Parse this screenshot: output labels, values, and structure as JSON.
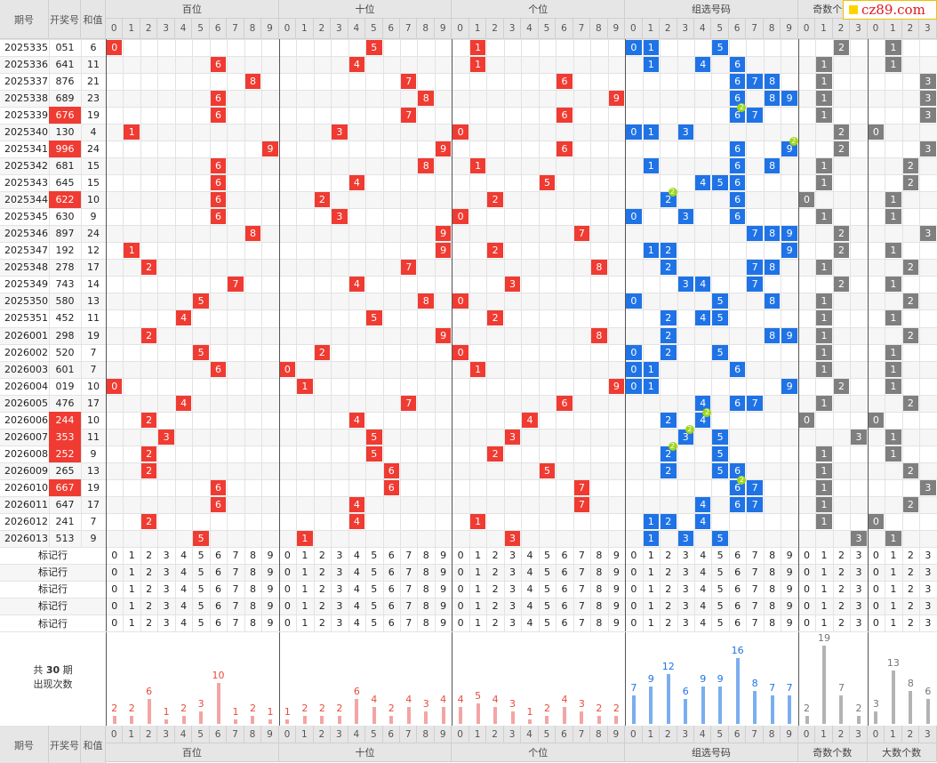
{
  "headers": {
    "period": "期号",
    "draw": "开奖号",
    "sum": "和值",
    "groups": [
      "百位",
      "十位",
      "个位",
      "组选号码",
      "奇数个数",
      "大数个数"
    ]
  },
  "digits": [
    "0",
    "1",
    "2",
    "3",
    "4",
    "5",
    "6",
    "7",
    "8",
    "9"
  ],
  "count_digits": [
    "0",
    "1",
    "2",
    "3"
  ],
  "rows": [
    {
      "period": "2025335",
      "draw": "051",
      "sum": "6"
    },
    {
      "period": "2025336",
      "draw": "641",
      "sum": "11"
    },
    {
      "period": "2025337",
      "draw": "876",
      "sum": "21"
    },
    {
      "period": "2025338",
      "draw": "689",
      "sum": "23"
    },
    {
      "period": "2025339",
      "draw": "676",
      "sum": "19"
    },
    {
      "period": "2025340",
      "draw": "130",
      "sum": "4"
    },
    {
      "period": "2025341",
      "draw": "996",
      "sum": "24"
    },
    {
      "period": "2025342",
      "draw": "681",
      "sum": "15"
    },
    {
      "period": "2025343",
      "draw": "645",
      "sum": "15"
    },
    {
      "period": "2025344",
      "draw": "622",
      "sum": "10"
    },
    {
      "period": "2025345",
      "draw": "630",
      "sum": "9"
    },
    {
      "period": "2025346",
      "draw": "897",
      "sum": "24"
    },
    {
      "period": "2025347",
      "draw": "192",
      "sum": "12"
    },
    {
      "period": "2025348",
      "draw": "278",
      "sum": "17"
    },
    {
      "period": "2025349",
      "draw": "743",
      "sum": "14"
    },
    {
      "period": "2025350",
      "draw": "580",
      "sum": "13"
    },
    {
      "period": "2025351",
      "draw": "452",
      "sum": "11"
    },
    {
      "period": "2026001",
      "draw": "298",
      "sum": "19"
    },
    {
      "period": "2026002",
      "draw": "520",
      "sum": "7"
    },
    {
      "period": "2026003",
      "draw": "601",
      "sum": "7"
    },
    {
      "period": "2026004",
      "draw": "019",
      "sum": "10"
    },
    {
      "period": "2026005",
      "draw": "476",
      "sum": "17"
    },
    {
      "period": "2026006",
      "draw": "244",
      "sum": "10"
    },
    {
      "period": "2026007",
      "draw": "353",
      "sum": "11"
    },
    {
      "period": "2026008",
      "draw": "252",
      "sum": "9"
    },
    {
      "period": "2026009",
      "draw": "265",
      "sum": "13"
    },
    {
      "period": "2026010",
      "draw": "667",
      "sum": "19"
    },
    {
      "period": "2026011",
      "draw": "647",
      "sum": "17"
    },
    {
      "period": "2026012",
      "draw": "241",
      "sum": "7"
    },
    {
      "period": "2026013",
      "draw": "513",
      "sum": "9"
    }
  ],
  "repeat_badge": "2",
  "marker_label": "标记行",
  "marker_rows": 5,
  "stats": {
    "title_prefix": "共",
    "count": "30",
    "title_unit": "期",
    "title_line2": "出现次数",
    "bai": [
      2,
      2,
      6,
      1,
      2,
      3,
      10,
      1,
      2,
      1
    ],
    "shi": [
      1,
      2,
      2,
      2,
      6,
      4,
      2,
      4,
      3,
      4
    ],
    "ge": [
      4,
      5,
      4,
      3,
      1,
      2,
      4,
      3,
      2,
      2
    ],
    "group": [
      7,
      9,
      12,
      6,
      9,
      9,
      16,
      8,
      7,
      7
    ],
    "odd": [
      2,
      19,
      7,
      2
    ],
    "big": [
      3,
      13,
      8,
      6
    ]
  },
  "footer_groups": [
    "百位",
    "十位",
    "个位",
    "组选号码",
    "奇数个数",
    "大数个数"
  ],
  "logo": "cz89.com",
  "colors": {
    "red": "#ef3b32",
    "blue": "#1f73e6",
    "gray": "#7f7f7f",
    "bar_red": "#f4a4a4",
    "bar_blue": "#7aaef0",
    "bar_gray": "#b3b3b3",
    "label_red": "#e74c3c",
    "label_blue": "#1f73e6",
    "label_gray": "#777777",
    "repeat": "#9fd61b"
  }
}
